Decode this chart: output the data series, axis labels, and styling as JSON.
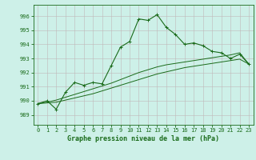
{
  "title": "Graphe pression niveau de la mer (hPa)",
  "bg_color": "#cdf0e8",
  "grid_color": "#b8c8c0",
  "line_color": "#1a6b1a",
  "x_ticks": [
    0,
    1,
    2,
    3,
    4,
    5,
    6,
    7,
    8,
    9,
    10,
    11,
    12,
    13,
    14,
    15,
    16,
    17,
    18,
    19,
    20,
    21,
    22,
    23
  ],
  "y_ticks": [
    989,
    990,
    991,
    992,
    993,
    994,
    995,
    996
  ],
  "ylim": [
    988.3,
    996.8
  ],
  "xlim": [
    -0.5,
    23.5
  ],
  "series1": [
    989.8,
    990.0,
    989.4,
    990.6,
    991.3,
    991.1,
    991.3,
    991.2,
    992.5,
    993.8,
    994.2,
    995.8,
    995.7,
    996.1,
    995.2,
    994.7,
    994.0,
    994.1,
    993.9,
    993.5,
    993.4,
    993.0,
    993.3,
    992.6
  ],
  "series2": [
    989.8,
    989.85,
    989.9,
    990.05,
    990.2,
    990.35,
    990.5,
    990.7,
    990.9,
    991.1,
    991.3,
    991.5,
    991.7,
    991.9,
    992.05,
    992.2,
    992.35,
    992.45,
    992.55,
    992.65,
    992.75,
    992.85,
    992.95,
    992.6
  ],
  "series3": [
    989.8,
    989.9,
    990.05,
    990.25,
    990.45,
    990.65,
    990.85,
    991.05,
    991.25,
    991.5,
    991.75,
    992.0,
    992.2,
    992.4,
    992.55,
    992.65,
    992.75,
    992.85,
    992.95,
    993.05,
    993.15,
    993.25,
    993.4,
    992.6
  ]
}
